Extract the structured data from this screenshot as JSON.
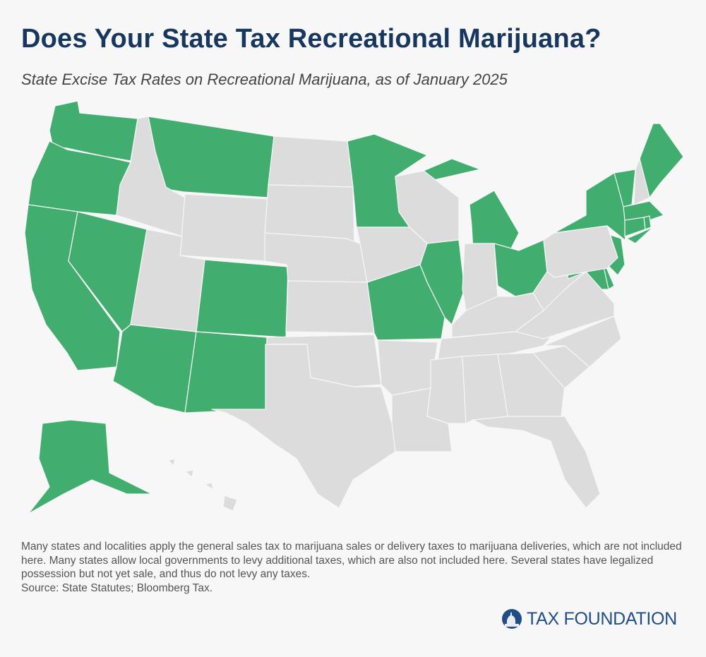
{
  "header": {
    "title": "Does Your State Tax Recreational Marijuana?",
    "subtitle": "State Excise Tax Rates on Recreational Marijuana, as of January 2025"
  },
  "colors": {
    "taxed": "#41ad6f",
    "not_taxed": "#dcdcdc",
    "background": "#f7f7f7",
    "title": "#17375e"
  },
  "map": {
    "taxed_states": [
      "WA",
      "OR",
      "CA",
      "NV",
      "AZ",
      "NM",
      "CO",
      "MT",
      "MN",
      "MI",
      "IL",
      "MO",
      "OH",
      "NY",
      "VT",
      "ME",
      "MA",
      "CT",
      "RI",
      "NJ",
      "DE",
      "MD",
      "AK"
    ],
    "untaxed_states": [
      "ID",
      "WY",
      "UT",
      "ND",
      "SD",
      "NE",
      "KS",
      "OK",
      "TX",
      "IA",
      "AR",
      "LA",
      "WI",
      "IN",
      "KY",
      "TN",
      "MS",
      "AL",
      "GA",
      "FL",
      "SC",
      "NC",
      "VA",
      "WV",
      "PA",
      "NH",
      "HI"
    ]
  },
  "footer": {
    "note": "Many states and localities apply the general sales tax to marijuana sales or delivery taxes to marijuana deliveries, which are not included here. Many states allow local governments to levy additional taxes, which are also not included here. Several states have legalized possession but not yet sale, and thus do not levy any taxes.",
    "source": "Source: State Statutes; Bloomberg Tax.",
    "logo_text": "TAX FOUNDATION"
  }
}
